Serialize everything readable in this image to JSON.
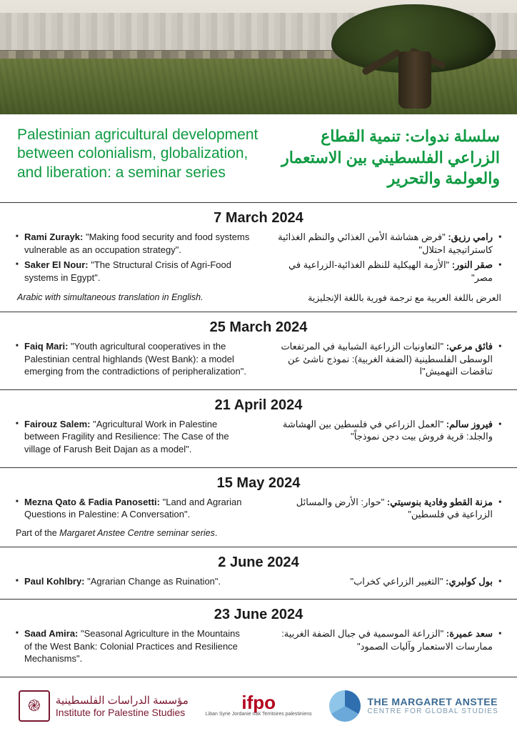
{
  "colors": {
    "accent_green": "#0f9a42",
    "rule": "#333333",
    "ips_maroon": "#7a1730",
    "ifpo_red": "#b3001e",
    "mac_blue": "#3a6a93"
  },
  "title_en": "Palestinian agricultural development between colonialism, globalization, and liberation: a seminar series",
  "title_ar": "سلسلة ندوات: تنمية القطاع الزراعي الفلسطيني بين الاستعمار والعولمة والتحرير",
  "sessions": [
    {
      "date": "7 March 2024",
      "en": [
        {
          "speaker": "Rami Zurayk:",
          "title": " \"Making food security and food systems vulnerable as an occupation strategy\"."
        },
        {
          "speaker": "Saker El Nour:",
          "title": " \"The Structural Crisis of Agri-Food systems in Egypt\"."
        }
      ],
      "ar": [
        {
          "speaker": "رامي رزيق:",
          "title": " \"فرض هشاشة الأمن الغذائي والنظم الغذائية كاستراتيجية احتلال\""
        },
        {
          "speaker": "صقر النور:",
          "title": " \"الأزمة الهيكلية للنظم الغذائية-الزراعية في مصر\""
        }
      ],
      "note_en": "Arabic with simultaneous translation in English.",
      "note_ar": "العرض باللغة العربية مع ترجمة فورية باللغة الإنجليزية"
    },
    {
      "date": "25 March 2024",
      "en": [
        {
          "speaker": "Faiq Mari:",
          "title": " \"Youth agricultural cooperatives in the Palestinian central highlands (West Bank): a model emerging from the contradictions of peripheralization\"."
        }
      ],
      "ar": [
        {
          "speaker": "فائق مرعي:",
          "title": " \"التعاونيات الزراعية الشبابية في المرتفعات الوسطى الفلسطينية (الضفة الغربية): نموذج ناشئ عن تناقضات التهميش\"ا"
        }
      ]
    },
    {
      "date": "21 April 2024",
      "en": [
        {
          "speaker": "Fairouz Salem:",
          "title": " \"Agricultural Work in Palestine between Fragility and Resilience: The Case of the village of Farush Beit Dajan as a model\"."
        }
      ],
      "ar": [
        {
          "speaker": "فيروز سالم:",
          "title": " \"العمل الزراعي في فلسطين بين الهشاشة والجلد: قرية فروش بيت دجن نموذجاً\""
        }
      ]
    },
    {
      "date": "15 May 2024",
      "en": [
        {
          "speaker": "Mezna Qato & Fadia Panosetti:",
          "title": " \"Land and Agrarian Questions in Palestine: A Conversation\"."
        }
      ],
      "ar": [
        {
          "speaker": "مزنة القطو وفادية بنوسيتي:",
          "title": " \"حوار: الأرض والمسائل الزراعية في فلسطين\""
        }
      ],
      "session_note_prefix": "Part of the ",
      "session_note_italic": "Margaret Anstee Centre seminar series",
      "session_note_suffix": "."
    },
    {
      "date": "2 June 2024",
      "en": [
        {
          "speaker": "Paul Kohlbry:",
          "title": " \"Agrarian Change as Ruination\"."
        }
      ],
      "ar": [
        {
          "speaker": "بول كولبري:",
          "title": " \"التغيير الزراعي كخراب\""
        }
      ]
    },
    {
      "date": "23 June 2024",
      "en": [
        {
          "speaker": "Saad Amira:",
          "title": " \"Seasonal Agriculture in the Mountains of the West Bank: Colonial Practices and Resilience Mechanisms\"."
        }
      ],
      "ar": [
        {
          "speaker": "سعد عميرة:",
          "title": " \"الزراعة الموسمية في جبال الضفة الغربية: ممارسات الاستعمار وآليات الصمود\""
        }
      ]
    }
  ],
  "logos": {
    "ips": {
      "ar": "مؤسسة الدراسات الفلسطينية",
      "en": "Institute for Palestine Studies",
      "glyph": "֎"
    },
    "ifpo": {
      "main": "ifpo",
      "sub": "Liban  Syrie\nJordanie\nIrak  Territoires\npalestiniens"
    },
    "mac": {
      "l1": "THE MARGARET ANSTEE",
      "l2": "CENTRE FOR GLOBAL STUDIES"
    }
  }
}
